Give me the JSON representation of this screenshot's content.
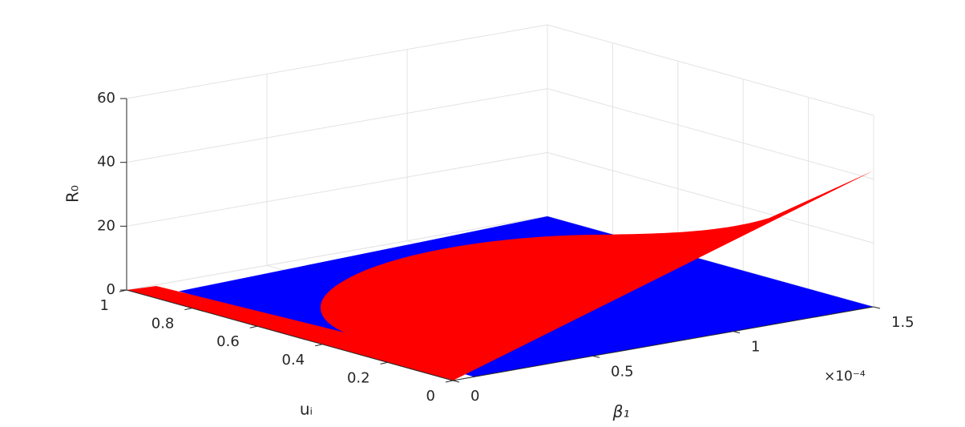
{
  "chart_data": {
    "type": "surface3d",
    "xlabel": "β₁",
    "ylabel": "uᵢ",
    "zlabel": "R₀",
    "x_exponent": "×10⁻⁴",
    "xlim": [
      0,
      1.5
    ],
    "xticks": [
      0,
      0.5,
      1,
      1.5
    ],
    "ylim": [
      0,
      1
    ],
    "yticks": [
      0,
      0.2,
      0.4,
      0.6,
      0.8,
      1
    ],
    "zlim": [
      0,
      60
    ],
    "zticks": [
      0,
      20,
      40,
      60
    ],
    "grid": true,
    "surface_colors": [
      "#0000ff",
      "#ff0000"
    ]
  }
}
